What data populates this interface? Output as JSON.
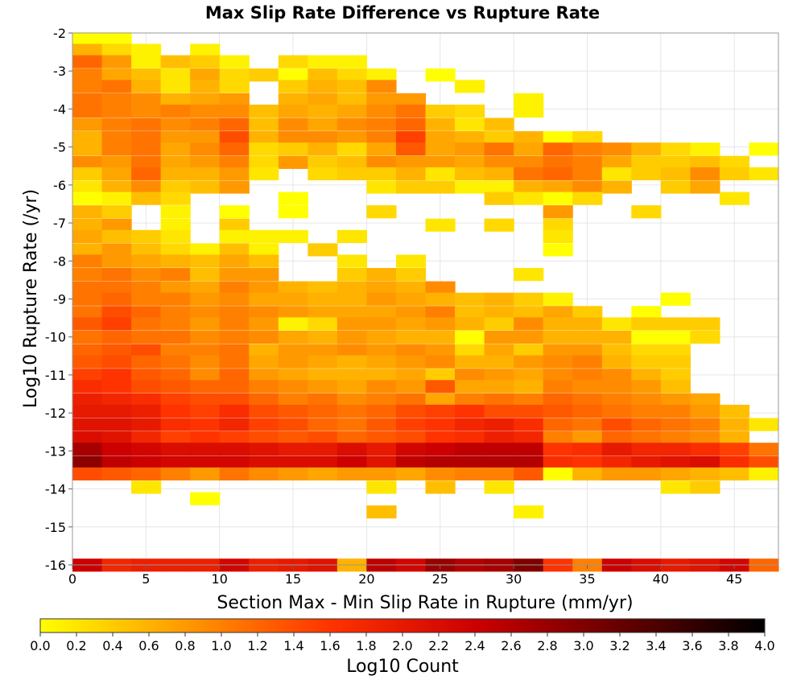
{
  "chart_data": {
    "type": "heatmap",
    "title": "Max Slip Rate Difference vs Rupture Rate",
    "xlabel": "Section Max - Min Slip Rate in Rupture (mm/yr)",
    "ylabel": "Log10 Rupture Rate (/yr)",
    "xlim": [
      0,
      48
    ],
    "ylim": [
      -16,
      -2
    ],
    "x_ticks": [
      0,
      5,
      10,
      15,
      20,
      25,
      30,
      35,
      40,
      45
    ],
    "y_ticks": [
      -2,
      -3,
      -4,
      -5,
      -6,
      -7,
      -8,
      -9,
      -10,
      -11,
      -12,
      -13,
      -14,
      -15,
      -16
    ],
    "x_bin_width": 2,
    "y_bin_width": 0.33,
    "x_bin_starts": [
      0,
      2,
      4,
      6,
      8,
      10,
      12,
      14,
      16,
      18,
      20,
      22,
      24,
      26,
      28,
      30,
      32,
      34,
      36,
      38,
      40,
      42,
      44,
      46
    ],
    "y_bin_centers": [
      -2.15,
      -2.45,
      -2.75,
      -3.1,
      -3.4,
      -3.75,
      -4.05,
      -4.4,
      -4.75,
      -5.05,
      -5.4,
      -5.7,
      -6.05,
      -6.35,
      -6.7,
      -7.05,
      -7.35,
      -7.7,
      -8.0,
      -8.35,
      -8.7,
      -9.0,
      -9.35,
      -9.65,
      -10.0,
      -10.35,
      -10.65,
      -11.0,
      -11.3,
      -11.65,
      -11.95,
      -12.3,
      -12.65,
      -12.95,
      -13.3,
      -13.6,
      -13.95,
      -14.25,
      -14.6,
      -16.0
    ],
    "values_note": "Cell values are Log10 Count on the colorbar scale (0.0 to 4.0); null = empty bin. Rows follow y_bin_centers, columns follow x_bin_starts.",
    "z": [
      [
        0.0,
        0.0,
        null,
        null,
        null,
        null,
        null,
        null,
        null,
        null,
        null,
        null,
        null,
        null,
        null,
        null,
        null,
        null,
        null,
        null,
        null,
        null,
        null,
        null
      ],
      [
        0.6,
        0.3,
        0.1,
        null,
        0.1,
        null,
        null,
        null,
        null,
        null,
        null,
        null,
        null,
        null,
        null,
        null,
        null,
        null,
        null,
        null,
        null,
        null,
        null,
        null
      ],
      [
        1.2,
        0.8,
        0.1,
        0.5,
        0.4,
        0.1,
        null,
        0.3,
        0.1,
        0.1,
        null,
        null,
        null,
        null,
        null,
        null,
        null,
        null,
        null,
        null,
        null,
        null,
        null,
        null
      ],
      [
        1.0,
        0.7,
        0.5,
        0.2,
        0.7,
        0.3,
        0.4,
        0.0,
        0.5,
        0.3,
        0.1,
        null,
        0.0,
        null,
        null,
        null,
        null,
        null,
        null,
        null,
        null,
        null,
        null,
        null
      ],
      [
        1.0,
        1.1,
        0.6,
        0.2,
        0.6,
        0.3,
        null,
        0.4,
        0.6,
        0.5,
        0.9,
        null,
        null,
        0.1,
        null,
        null,
        null,
        null,
        null,
        null,
        null,
        null,
        null,
        null
      ],
      [
        1.1,
        1.0,
        0.9,
        0.6,
        0.7,
        0.8,
        null,
        0.6,
        0.7,
        0.5,
        0.8,
        0.8,
        null,
        null,
        null,
        0.1,
        null,
        null,
        null,
        null,
        null,
        null,
        null,
        null
      ],
      [
        1.1,
        1.0,
        0.9,
        1.0,
        0.9,
        0.9,
        0.5,
        0.7,
        0.6,
        0.7,
        0.9,
        1.1,
        0.4,
        0.3,
        null,
        0.1,
        null,
        null,
        null,
        null,
        null,
        null,
        null,
        null
      ],
      [
        0.8,
        1.0,
        1.1,
        0.9,
        1.0,
        1.2,
        0.5,
        0.9,
        0.7,
        0.9,
        1.0,
        1.2,
        0.6,
        0.2,
        0.5,
        null,
        null,
        null,
        null,
        null,
        null,
        null,
        null,
        null
      ],
      [
        0.6,
        1.0,
        1.1,
        0.8,
        0.8,
        1.4,
        0.6,
        0.9,
        0.9,
        0.8,
        1.0,
        1.5,
        0.7,
        0.6,
        0.4,
        0.6,
        0.0,
        0.3,
        null,
        null,
        null,
        null,
        null,
        null
      ],
      [
        0.6,
        1.0,
        1.1,
        0.7,
        0.9,
        1.2,
        0.3,
        0.4,
        0.6,
        0.3,
        0.7,
        1.3,
        0.7,
        0.8,
        1.1,
        0.7,
        1.2,
        1.0,
        0.9,
        0.6,
        0.3,
        0.1,
        null,
        0.0
      ],
      [
        0.9,
        0.8,
        1.1,
        0.7,
        0.8,
        1.0,
        0.3,
        0.8,
        0.4,
        0.5,
        0.9,
        0.8,
        0.8,
        0.7,
        0.9,
        0.9,
        1.1,
        1.0,
        0.7,
        0.4,
        0.4,
        0.5,
        0.3,
        null
      ],
      [
        0.4,
        0.7,
        1.2,
        0.6,
        0.6,
        0.8,
        0.2,
        null,
        0.3,
        0.4,
        0.4,
        0.6,
        0.2,
        0.5,
        0.6,
        1.1,
        1.2,
        1.0,
        0.2,
        0.4,
        0.5,
        0.9,
        0.4,
        0.2
      ],
      [
        0.2,
        0.6,
        0.9,
        0.4,
        0.5,
        0.8,
        null,
        null,
        null,
        null,
        0.2,
        0.4,
        0.4,
        0.1,
        0.1,
        0.6,
        0.7,
        0.9,
        0.6,
        null,
        0.4,
        0.7,
        null,
        null
      ],
      [
        0.0,
        0.1,
        0.5,
        0.3,
        null,
        null,
        null,
        0.0,
        null,
        null,
        null,
        null,
        null,
        null,
        0.4,
        0.2,
        0.0,
        0.3,
        null,
        null,
        null,
        null,
        0.2,
        null
      ],
      [
        0.6,
        0.4,
        null,
        0.1,
        null,
        0.0,
        null,
        0.0,
        null,
        null,
        0.3,
        null,
        null,
        null,
        null,
        null,
        0.8,
        null,
        null,
        0.3,
        null,
        null,
        null,
        null
      ],
      [
        0.6,
        0.8,
        null,
        0.1,
        null,
        0.4,
        null,
        null,
        null,
        null,
        null,
        null,
        0.2,
        null,
        0.3,
        null,
        0.3,
        null,
        null,
        null,
        null,
        null,
        null,
        null
      ],
      [
        0.7,
        0.5,
        0.4,
        0.2,
        null,
        0.1,
        0.1,
        0.1,
        null,
        0.2,
        null,
        null,
        null,
        null,
        null,
        null,
        0.2,
        null,
        null,
        null,
        null,
        null,
        null,
        null
      ],
      [
        0.6,
        0.8,
        0.5,
        0.3,
        0.1,
        0.5,
        0.1,
        null,
        0.4,
        null,
        null,
        null,
        null,
        null,
        null,
        null,
        0.0,
        null,
        null,
        null,
        null,
        null,
        null,
        null
      ],
      [
        1.0,
        0.8,
        0.7,
        0.6,
        0.5,
        0.7,
        0.5,
        null,
        null,
        0.2,
        null,
        0.2,
        null,
        null,
        null,
        null,
        null,
        null,
        null,
        null,
        null,
        null,
        null,
        null
      ],
      [
        1.0,
        1.1,
        0.9,
        1.0,
        0.5,
        0.8,
        0.8,
        null,
        null,
        0.4,
        0.6,
        0.4,
        null,
        null,
        null,
        0.2,
        null,
        null,
        null,
        null,
        null,
        null,
        null,
        null
      ],
      [
        1.1,
        1.1,
        1.0,
        0.8,
        0.7,
        1.0,
        0.8,
        0.6,
        0.5,
        0.6,
        0.7,
        0.6,
        0.9,
        null,
        null,
        null,
        null,
        null,
        null,
        null,
        null,
        null,
        null,
        null
      ],
      [
        1.1,
        1.2,
        1.0,
        1.0,
        0.8,
        0.9,
        0.7,
        0.7,
        0.6,
        0.6,
        0.8,
        0.7,
        0.6,
        0.5,
        0.6,
        0.4,
        0.1,
        null,
        null,
        null,
        0.0,
        null,
        null,
        null
      ],
      [
        1.1,
        1.4,
        1.2,
        1.0,
        0.9,
        1.0,
        0.9,
        0.8,
        0.7,
        0.7,
        0.7,
        0.8,
        1.0,
        0.5,
        0.6,
        0.5,
        0.7,
        0.4,
        null,
        0.0,
        null,
        null,
        null,
        null
      ],
      [
        1.3,
        1.5,
        1.1,
        1.0,
        0.8,
        1.0,
        0.8,
        0.1,
        0.3,
        0.8,
        0.8,
        0.7,
        0.8,
        0.6,
        0.4,
        0.9,
        0.6,
        0.6,
        0.2,
        0.4,
        0.4,
        0.4,
        null,
        null
      ],
      [
        1.1,
        1.2,
        1.1,
        1.1,
        0.9,
        1.0,
        0.9,
        0.7,
        0.6,
        0.8,
        0.7,
        0.6,
        0.6,
        0.0,
        0.8,
        0.8,
        0.6,
        0.6,
        0.6,
        0.0,
        0.0,
        0.3,
        null,
        null
      ],
      [
        1.2,
        1.3,
        1.4,
        1.0,
        1.0,
        1.1,
        0.6,
        0.8,
        0.8,
        0.9,
        0.8,
        0.9,
        0.8,
        0.3,
        0.7,
        0.4,
        0.8,
        0.8,
        0.5,
        0.3,
        0.3,
        null,
        null,
        null
      ],
      [
        1.3,
        1.4,
        1.2,
        1.1,
        0.9,
        1.1,
        0.7,
        0.8,
        0.7,
        0.6,
        0.7,
        0.8,
        0.9,
        0.6,
        0.6,
        0.8,
        0.9,
        1.0,
        0.6,
        0.4,
        0.4,
        null,
        null,
        null
      ],
      [
        1.5,
        1.6,
        1.3,
        1.2,
        0.9,
        1.2,
        0.8,
        0.7,
        0.6,
        0.6,
        0.6,
        0.7,
        0.4,
        0.9,
        0.8,
        0.7,
        0.9,
        1.0,
        0.9,
        0.6,
        0.4,
        null,
        null,
        null
      ],
      [
        1.7,
        1.6,
        1.4,
        1.3,
        1.2,
        1.2,
        1.0,
        0.9,
        0.8,
        0.7,
        0.9,
        0.8,
        1.3,
        0.7,
        0.7,
        0.6,
        1.0,
        0.9,
        0.9,
        0.8,
        0.5,
        null,
        null,
        null
      ],
      [
        1.9,
        1.8,
        1.7,
        1.5,
        1.4,
        1.4,
        1.2,
        1.0,
        1.1,
        0.9,
        1.0,
        1.1,
        0.7,
        1.0,
        1.1,
        1.0,
        1.2,
        1.1,
        1.0,
        0.9,
        0.8,
        0.7,
        null,
        null
      ],
      [
        2.0,
        2.0,
        1.9,
        1.6,
        1.5,
        1.7,
        1.4,
        1.3,
        1.2,
        1.1,
        1.2,
        1.4,
        1.5,
        1.6,
        1.4,
        1.4,
        1.3,
        1.2,
        1.1,
        1.0,
        1.0,
        0.8,
        0.5,
        null
      ],
      [
        2.1,
        2.1,
        2.0,
        1.7,
        1.6,
        1.8,
        1.5,
        1.4,
        1.2,
        1.1,
        1.3,
        1.5,
        1.6,
        1.8,
        1.9,
        1.7,
        1.2,
        1.1,
        1.4,
        1.2,
        1.1,
        1.0,
        0.6,
        0.2
      ],
      [
        2.2,
        2.1,
        1.8,
        1.5,
        1.6,
        1.5,
        1.4,
        1.3,
        1.4,
        1.2,
        1.3,
        1.4,
        1.6,
        1.7,
        1.9,
        1.8,
        1.0,
        0.8,
        1.2,
        1.1,
        1.0,
        0.9,
        0.6,
        null
      ],
      [
        2.7,
        2.4,
        2.3,
        2.2,
        2.2,
        2.2,
        2.1,
        2.0,
        2.0,
        2.2,
        2.0,
        2.3,
        2.4,
        2.5,
        2.5,
        2.5,
        1.6,
        1.7,
        2.0,
        1.8,
        1.8,
        1.7,
        1.5,
        1.1
      ],
      [
        2.9,
        2.5,
        2.4,
        2.3,
        2.3,
        2.3,
        2.2,
        2.2,
        2.2,
        2.4,
        2.1,
        2.5,
        2.6,
        2.6,
        2.6,
        2.6,
        1.7,
        1.6,
        1.8,
        2.0,
        2.1,
        2.2,
        1.7,
        1.4
      ],
      [
        1.4,
        1.3,
        1.2,
        1.0,
        0.8,
        1.1,
        0.9,
        0.8,
        0.7,
        0.8,
        0.8,
        0.7,
        0.9,
        1.0,
        1.0,
        1.3,
        0.0,
        0.6,
        0.8,
        0.8,
        0.7,
        0.6,
        0.5,
        0.1
      ],
      [
        null,
        null,
        0.2,
        null,
        null,
        null,
        null,
        null,
        null,
        null,
        0.2,
        null,
        0.5,
        null,
        0.2,
        null,
        null,
        null,
        null,
        null,
        0.2,
        0.4,
        null,
        null
      ],
      [
        null,
        null,
        null,
        null,
        0.0,
        null,
        null,
        null,
        null,
        null,
        null,
        null,
        null,
        null,
        null,
        null,
        null,
        null,
        null,
        null,
        null,
        null,
        null,
        null
      ],
      [
        null,
        null,
        null,
        null,
        null,
        null,
        null,
        null,
        null,
        null,
        0.5,
        null,
        null,
        null,
        null,
        0.1,
        null,
        null,
        null,
        null,
        null,
        null,
        null,
        null
      ],
      [
        2.4,
        1.8,
        1.9,
        1.9,
        1.9,
        2.3,
        1.9,
        2.0,
        2.1,
        0.6,
        2.5,
        2.3,
        2.8,
        2.6,
        2.7,
        3.0,
        1.6,
        1.0,
        2.4,
        2.2,
        2.0,
        2.1,
        2.3,
        1.2
      ]
    ],
    "colorbar": {
      "label": "Log10 Count",
      "min": 0.0,
      "max": 4.0,
      "ticks": [
        "0.0",
        "0.2",
        "0.4",
        "0.6",
        "0.8",
        "1.0",
        "1.2",
        "1.4",
        "1.6",
        "1.8",
        "2.0",
        "2.2",
        "2.4",
        "2.6",
        "2.8",
        "3.0",
        "3.2",
        "3.4",
        "3.6",
        "3.8",
        "4.0"
      ],
      "colors": [
        "#ffff00",
        "#ff9900",
        "#ff3300",
        "#cc0000",
        "#660000",
        "#000000"
      ]
    },
    "grid": true
  }
}
